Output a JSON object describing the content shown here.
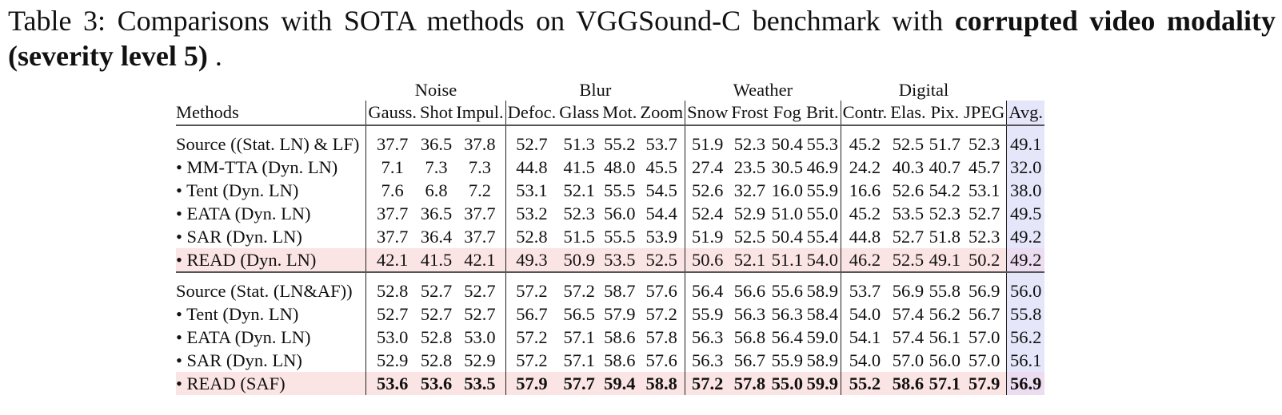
{
  "caption": {
    "prefix": "Table 3: Comparisons with SOTA methods on VGGSound-C benchmark with ",
    "bold": "corrupted video modality (severity level 5)",
    "suffix": " ."
  },
  "table": {
    "groups": [
      "Noise",
      "Blur",
      "Weather",
      "Digital"
    ],
    "columns": [
      "Methods",
      "Gauss.",
      "Shot",
      "Impul.",
      "Defoc.",
      "Glass",
      "Mot.",
      "Zoom",
      "Snow",
      "Frost",
      "Fog",
      "Brit.",
      "Contr.",
      "Elas.",
      "Pix.",
      "JPEG",
      "Avg."
    ],
    "block1": [
      {
        "method": "Source ((Stat. LN) & LF)",
        "values": [
          "37.7",
          "36.5",
          "37.8",
          "52.7",
          "51.3",
          "55.2",
          "53.7",
          "51.9",
          "52.3",
          "50.4",
          "55.3",
          "45.2",
          "52.5",
          "51.7",
          "52.3",
          "49.1"
        ]
      },
      {
        "method": "• MM-TTA (Dyn. LN)",
        "values": [
          "7.1",
          "7.3",
          "7.3",
          "44.8",
          "41.5",
          "48.0",
          "45.5",
          "27.4",
          "23.5",
          "30.5",
          "46.9",
          "24.2",
          "40.3",
          "40.7",
          "45.7",
          "32.0"
        ]
      },
      {
        "method": "• Tent (Dyn. LN)",
        "values": [
          "7.6",
          "6.8",
          "7.2",
          "53.1",
          "52.1",
          "55.5",
          "54.5",
          "52.6",
          "32.7",
          "16.0",
          "55.9",
          "16.6",
          "52.6",
          "54.2",
          "53.1",
          "38.0"
        ]
      },
      {
        "method": "• EATA (Dyn. LN)",
        "values": [
          "37.7",
          "36.5",
          "37.7",
          "53.2",
          "52.3",
          "56.0",
          "54.4",
          "52.4",
          "52.9",
          "51.0",
          "55.0",
          "45.2",
          "53.5",
          "52.3",
          "52.7",
          "49.5"
        ]
      },
      {
        "method": "• SAR (Dyn. LN)",
        "values": [
          "37.7",
          "36.4",
          "37.7",
          "52.8",
          "51.5",
          "55.5",
          "53.9",
          "51.9",
          "52.5",
          "50.4",
          "55.4",
          "44.8",
          "52.7",
          "51.8",
          "52.3",
          "49.2"
        ]
      },
      {
        "method": "• READ (Dyn. LN)",
        "values": [
          "42.1",
          "41.5",
          "42.1",
          "49.3",
          "50.9",
          "53.5",
          "52.5",
          "50.6",
          "52.1",
          "51.1",
          "54.0",
          "46.2",
          "52.5",
          "49.1",
          "50.2",
          "49.2"
        ]
      }
    ],
    "block2": [
      {
        "method": "Source (Stat. (LN&AF))",
        "values": [
          "52.8",
          "52.7",
          "52.7",
          "57.2",
          "57.2",
          "58.7",
          "57.6",
          "56.4",
          "56.6",
          "55.6",
          "58.9",
          "53.7",
          "56.9",
          "55.8",
          "56.9",
          "56.0"
        ]
      },
      {
        "method": "• Tent (Dyn. LN)",
        "values": [
          "52.7",
          "52.7",
          "52.7",
          "56.7",
          "56.5",
          "57.9",
          "57.2",
          "55.9",
          "56.3",
          "56.3",
          "58.4",
          "54.0",
          "57.4",
          "56.2",
          "56.7",
          "55.8"
        ]
      },
      {
        "method": "• EATA (Dyn. LN)",
        "values": [
          "53.0",
          "52.8",
          "53.0",
          "57.2",
          "57.1",
          "58.6",
          "57.8",
          "56.3",
          "56.8",
          "56.4",
          "59.0",
          "54.1",
          "57.4",
          "56.1",
          "57.0",
          "56.2"
        ]
      },
      {
        "method": "• SAR (Dyn. LN)",
        "values": [
          "52.9",
          "52.8",
          "52.9",
          "57.2",
          "57.1",
          "58.6",
          "57.6",
          "56.3",
          "56.7",
          "55.9",
          "58.9",
          "54.0",
          "57.0",
          "56.0",
          "57.0",
          "56.1"
        ]
      },
      {
        "method": "• READ (SAF)",
        "values": [
          "53.6",
          "53.6",
          "53.5",
          "57.9",
          "57.7",
          "59.4",
          "58.8",
          "57.2",
          "57.8",
          "55.0",
          "59.9",
          "55.2",
          "58.6",
          "57.1",
          "57.9",
          "56.9"
        ]
      }
    ]
  },
  "highlight_colors": {
    "read_row": "#fbe4e4",
    "avg_col": "#e6e6fb"
  }
}
